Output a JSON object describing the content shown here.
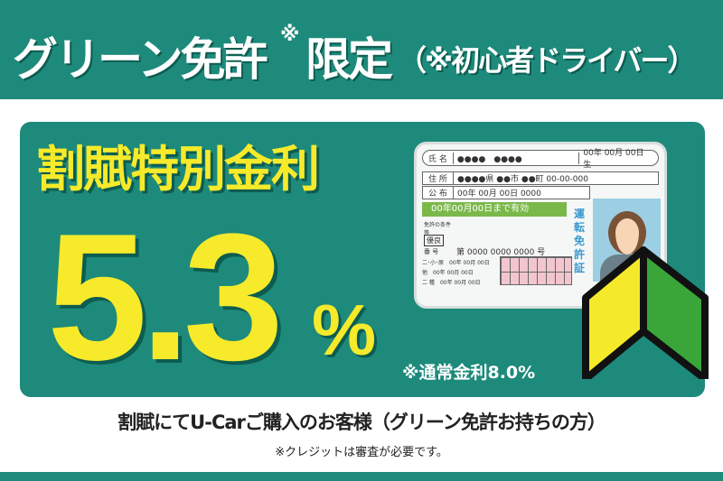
{
  "header": {
    "title_part1": "グリーン免許",
    "asterisk": "※",
    "title_part2": "限定",
    "title_note": "（※初心者ドライバー）"
  },
  "promo": {
    "heading": "割賦特別金利",
    "rate": "5.3",
    "percent": "%",
    "normal_rate": "※通常金利8.0%"
  },
  "license_card": {
    "name_label": "氏 名",
    "name_value": "●●●●　●●●●",
    "birth": "00年 00月 00日 生",
    "address_label": "住 所",
    "address_value": "●●●●県 ●●市 ●●町 00-00-000",
    "issue_label": "公 布",
    "issue_value": "00年 00月 00日 0000",
    "valid_until": "00年00月00日まで有効",
    "conditions_label": "免許の条件等",
    "grade": "優良",
    "number_label": "番 号",
    "number_value": "第 0000 0000 0000 号",
    "rows": [
      {
        "label": "二･小･原",
        "date": "00年 00月 00日"
      },
      {
        "label": "他",
        "date": "00年 00月 00日"
      },
      {
        "label": "二 種",
        "date": "00年 00月 00日"
      }
    ],
    "vertical_title": "運転免許証"
  },
  "colors": {
    "teal": "#1e8a7b",
    "yellow": "#f6ea2a",
    "leaf_green": "#3aa63a"
  },
  "footer": {
    "main": "割賦にてU-Carご購入のお客様（グリーン免許お持ちの方）",
    "note": "※クレジットは審査が必要です。"
  }
}
